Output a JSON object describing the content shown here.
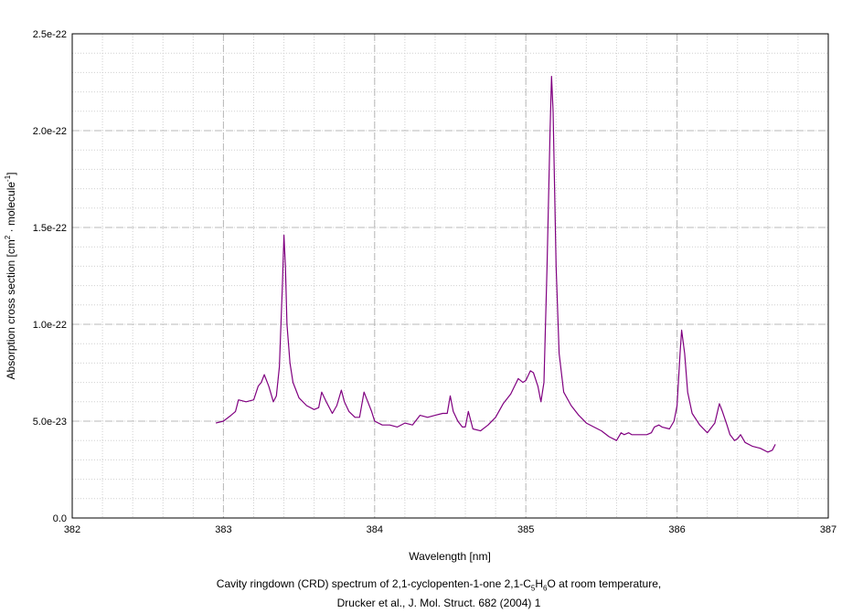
{
  "chart_data": {
    "type": "line",
    "title": "",
    "xlabel": "Wavelength [nm]",
    "ylabel_parts": [
      "Absorption cross section [cm",
      "2",
      " · molecule",
      "-1",
      "]"
    ],
    "xlim": [
      382,
      387
    ],
    "ylim": [
      0,
      2.5e-22
    ],
    "x_ticks": [
      382,
      383,
      384,
      385,
      386,
      387
    ],
    "x_tick_labels": [
      "382",
      "383",
      "384",
      "385",
      "386",
      "387"
    ],
    "y_ticks": [
      0,
      5e-23,
      1e-22,
      1.5e-22,
      2e-22,
      2.5e-22
    ],
    "y_tick_labels": [
      "0.0",
      "5.0e-23",
      "1.0e-22",
      "1.5e-22",
      "2.0e-22",
      "2.5e-22"
    ],
    "grid": true,
    "line_color": "#800080",
    "series": [
      {
        "x": [
          382.95,
          383.0,
          383.05,
          383.08,
          383.1,
          383.15,
          383.2,
          383.23,
          383.25,
          383.27,
          383.3,
          383.33,
          383.35,
          383.37,
          383.39,
          383.4,
          383.41,
          383.42,
          383.44,
          383.46,
          383.5,
          383.55,
          383.6,
          383.63,
          383.65,
          383.68,
          383.72,
          383.75,
          383.78,
          383.8,
          383.83,
          383.87,
          383.9,
          383.93,
          383.95,
          383.98,
          384.0,
          384.05,
          384.1,
          384.15,
          384.2,
          384.25,
          384.3,
          384.35,
          384.4,
          384.45,
          384.48,
          384.5,
          384.52,
          384.55,
          384.58,
          384.6,
          384.62,
          384.65,
          384.7,
          384.75,
          384.8,
          384.85,
          384.9,
          384.95,
          384.98,
          385.0,
          385.03,
          385.05,
          385.08,
          385.1,
          385.12,
          385.14,
          385.16,
          385.17,
          385.18,
          385.2,
          385.22,
          385.25,
          385.3,
          385.35,
          385.4,
          385.45,
          385.5,
          385.55,
          385.6,
          385.63,
          385.65,
          385.68,
          385.7,
          385.75,
          385.8,
          385.83,
          385.85,
          385.88,
          385.9,
          385.95,
          385.98,
          386.0,
          386.02,
          386.03,
          386.05,
          386.07,
          386.1,
          386.15,
          386.2,
          386.25,
          386.28,
          386.3,
          386.33,
          386.35,
          386.38,
          386.4,
          386.42,
          386.45,
          386.5,
          386.55,
          386.6,
          386.63,
          386.65
        ],
        "y": [
          4.9e-23,
          5e-23,
          5.3e-23,
          5.5e-23,
          6.1e-23,
          6e-23,
          6.1e-23,
          6.8e-23,
          7e-23,
          7.4e-23,
          6.8e-23,
          6e-23,
          6.3e-23,
          7.8e-23,
          1.2e-22,
          1.46e-22,
          1.3e-22,
          1e-22,
          8e-23,
          7e-23,
          6.2e-23,
          5.8e-23,
          5.6e-23,
          5.7e-23,
          6.5e-23,
          6e-23,
          5.4e-23,
          5.8e-23,
          6.6e-23,
          6e-23,
          5.5e-23,
          5.2e-23,
          5.2e-23,
          6.5e-23,
          6.1e-23,
          5.5e-23,
          5e-23,
          4.8e-23,
          4.8e-23,
          4.7e-23,
          4.9e-23,
          4.8e-23,
          5.3e-23,
          5.2e-23,
          5.3e-23,
          5.4e-23,
          5.4e-23,
          6.3e-23,
          5.5e-23,
          5e-23,
          4.7e-23,
          4.7e-23,
          5.5e-23,
          4.6e-23,
          4.5e-23,
          4.8e-23,
          5.2e-23,
          5.9e-23,
          6.4e-23,
          7.2e-23,
          7e-23,
          7.1e-23,
          7.6e-23,
          7.5e-23,
          6.8e-23,
          6e-23,
          7e-23,
          1.3e-22,
          2e-22,
          2.28e-22,
          2.1e-22,
          1.3e-22,
          8.5e-23,
          6.5e-23,
          5.8e-23,
          5.3e-23,
          4.9e-23,
          4.7e-23,
          4.5e-23,
          4.2e-23,
          4e-23,
          4.4e-23,
          4.3e-23,
          4.4e-23,
          4.3e-23,
          4.3e-23,
          4.3e-23,
          4.4e-23,
          4.7e-23,
          4.8e-23,
          4.7e-23,
          4.6e-23,
          5e-23,
          5.8e-23,
          8.5e-23,
          9.7e-23,
          8.5e-23,
          6.5e-23,
          5.4e-23,
          4.8e-23,
          4.4e-23,
          4.9e-23,
          5.9e-23,
          5.5e-23,
          4.8e-23,
          4.3e-23,
          4e-23,
          4.1e-23,
          4.3e-23,
          3.9e-23,
          3.7e-23,
          3.6e-23,
          3.4e-23,
          3.5e-23,
          3.8e-23
        ]
      }
    ]
  },
  "caption": {
    "line1_parts": [
      "Cavity ringdown (CRD) spectrum of 2,1-cyclopenten-1-one 2,1-C",
      "5",
      "H",
      "6",
      "O at room temperature,"
    ],
    "line2": "Drucker et al., J. Mol. Struct. 682 (2004) 1"
  }
}
